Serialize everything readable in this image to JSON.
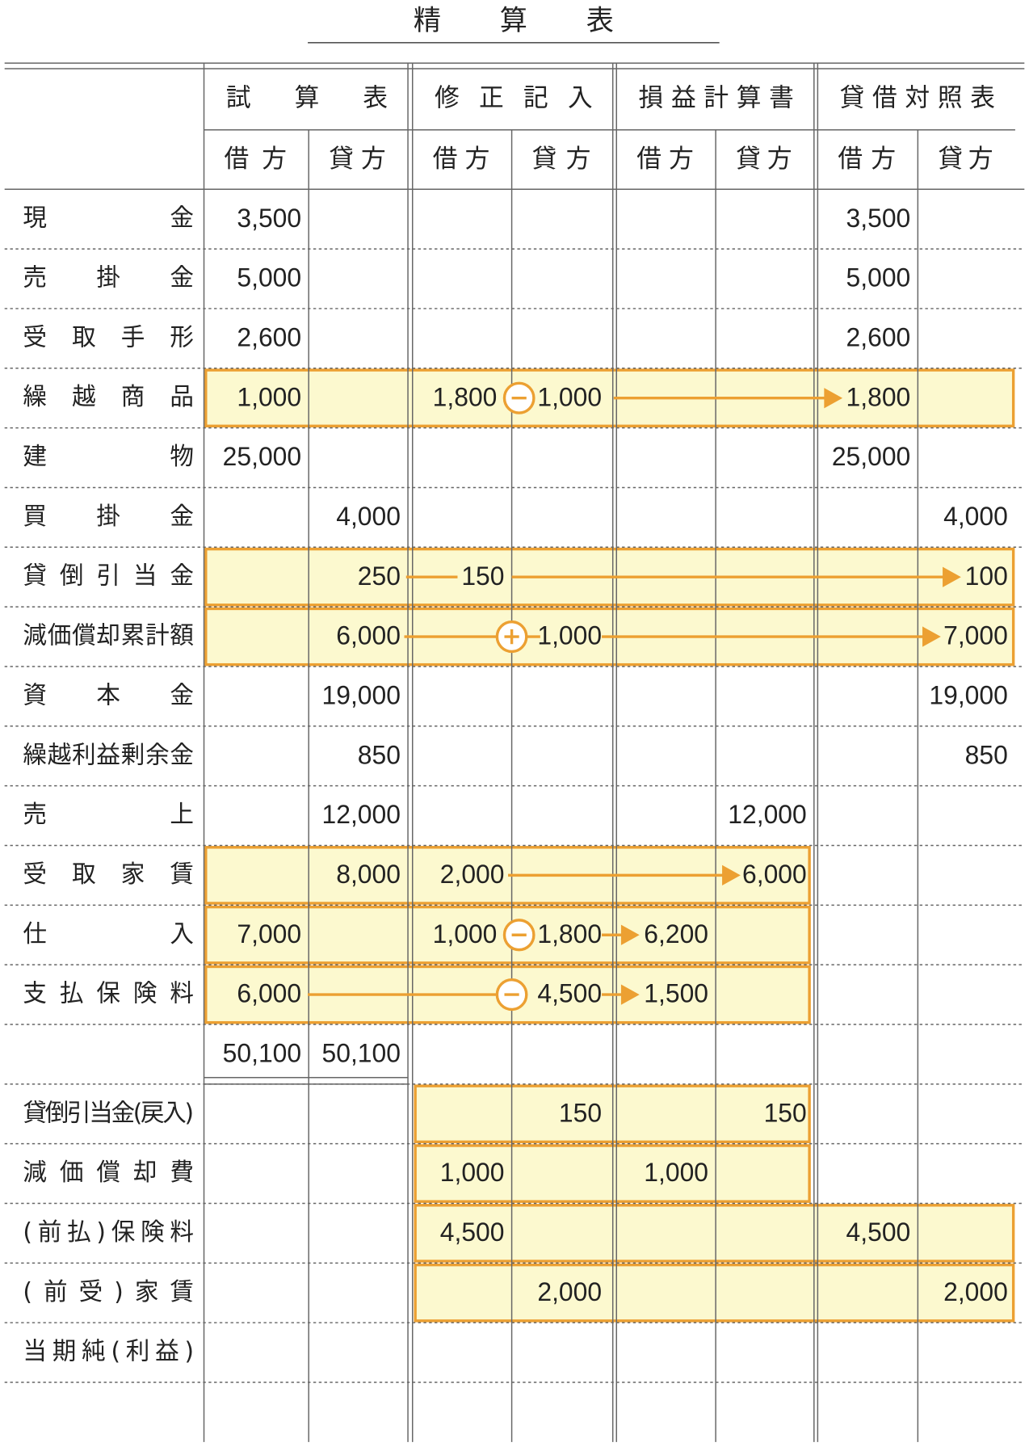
{
  "header": {
    "title": "精算表"
  },
  "columns": {
    "groups": [
      "試算表",
      "修正記入",
      "損益計算書",
      "貸借対照表"
    ],
    "sub": [
      "借方",
      "貸方",
      "借方",
      "貸方",
      "借方",
      "貸方",
      "借方",
      "貸方"
    ]
  },
  "rows": [
    {
      "label": "現金",
      "cells": [
        "3,500",
        null,
        null,
        null,
        null,
        null,
        "3,500",
        null
      ]
    },
    {
      "label": "売掛金",
      "cells": [
        "5,000",
        null,
        null,
        null,
        null,
        null,
        "5,000",
        null
      ]
    },
    {
      "label": "受取手形",
      "cells": [
        "2,600",
        null,
        null,
        null,
        null,
        null,
        "2,600",
        null
      ]
    },
    {
      "label": "繰越商品",
      "cells": [
        "1,000",
        null,
        "1,800",
        "1,000",
        null,
        null,
        "1,800",
        null
      ]
    },
    {
      "label": "建物",
      "cells": [
        "25,000",
        null,
        null,
        null,
        null,
        null,
        "25,000",
        null
      ]
    },
    {
      "label": "買掛金",
      "cells": [
        null,
        "4,000",
        null,
        null,
        null,
        null,
        null,
        "4,000"
      ]
    },
    {
      "label": "貸倒引当金",
      "cells": [
        null,
        "250",
        "150",
        null,
        null,
        null,
        null,
        "100"
      ]
    },
    {
      "label": "減価償却累計額",
      "cells": [
        null,
        "6,000",
        null,
        "1,000",
        null,
        null,
        null,
        "7,000"
      ]
    },
    {
      "label": "資本金",
      "cells": [
        null,
        "19,000",
        null,
        null,
        null,
        null,
        null,
        "19,000"
      ]
    },
    {
      "label": "繰越利益剰余金",
      "cells": [
        null,
        "850",
        null,
        null,
        null,
        null,
        null,
        "850"
      ]
    },
    {
      "label": "売上",
      "cells": [
        null,
        "12,000",
        null,
        null,
        null,
        "12,000",
        null,
        null
      ]
    },
    {
      "label": "受取家賃",
      "cells": [
        null,
        "8,000",
        "2,000",
        null,
        null,
        "6,000",
        null,
        null
      ]
    },
    {
      "label": "仕入",
      "cells": [
        "7,000",
        null,
        "1,000",
        "1,800",
        "6,200",
        null,
        null,
        null
      ]
    },
    {
      "label": "支払保険料",
      "cells": [
        "6,000",
        null,
        null,
        "4,500",
        "1,500",
        null,
        null,
        null
      ]
    },
    {
      "label": null,
      "cells": [
        "50,100",
        "50,100",
        null,
        null,
        null,
        null,
        null,
        null
      ]
    },
    {
      "label": "貸倒引当金(戻入)",
      "cells": [
        null,
        null,
        null,
        "150",
        null,
        "150",
        null,
        null
      ]
    },
    {
      "label": "減価償却費",
      "cells": [
        null,
        null,
        "1,000",
        null,
        "1,000",
        null,
        null,
        null
      ]
    },
    {
      "label": "(前払)保険料",
      "cells": [
        null,
        null,
        "4,500",
        null,
        null,
        null,
        "4,500",
        null
      ]
    },
    {
      "label": "(前受)家賃",
      "cells": [
        null,
        null,
        null,
        "2,000",
        null,
        null,
        null,
        "2,000"
      ]
    },
    {
      "label": "当期純(利益)",
      "cells": [
        null,
        null,
        null,
        null,
        null,
        null,
        null,
        null
      ]
    },
    {
      "label": null,
      "cells": [
        null,
        null,
        null,
        null,
        null,
        null,
        null,
        null
      ]
    }
  ]
}
